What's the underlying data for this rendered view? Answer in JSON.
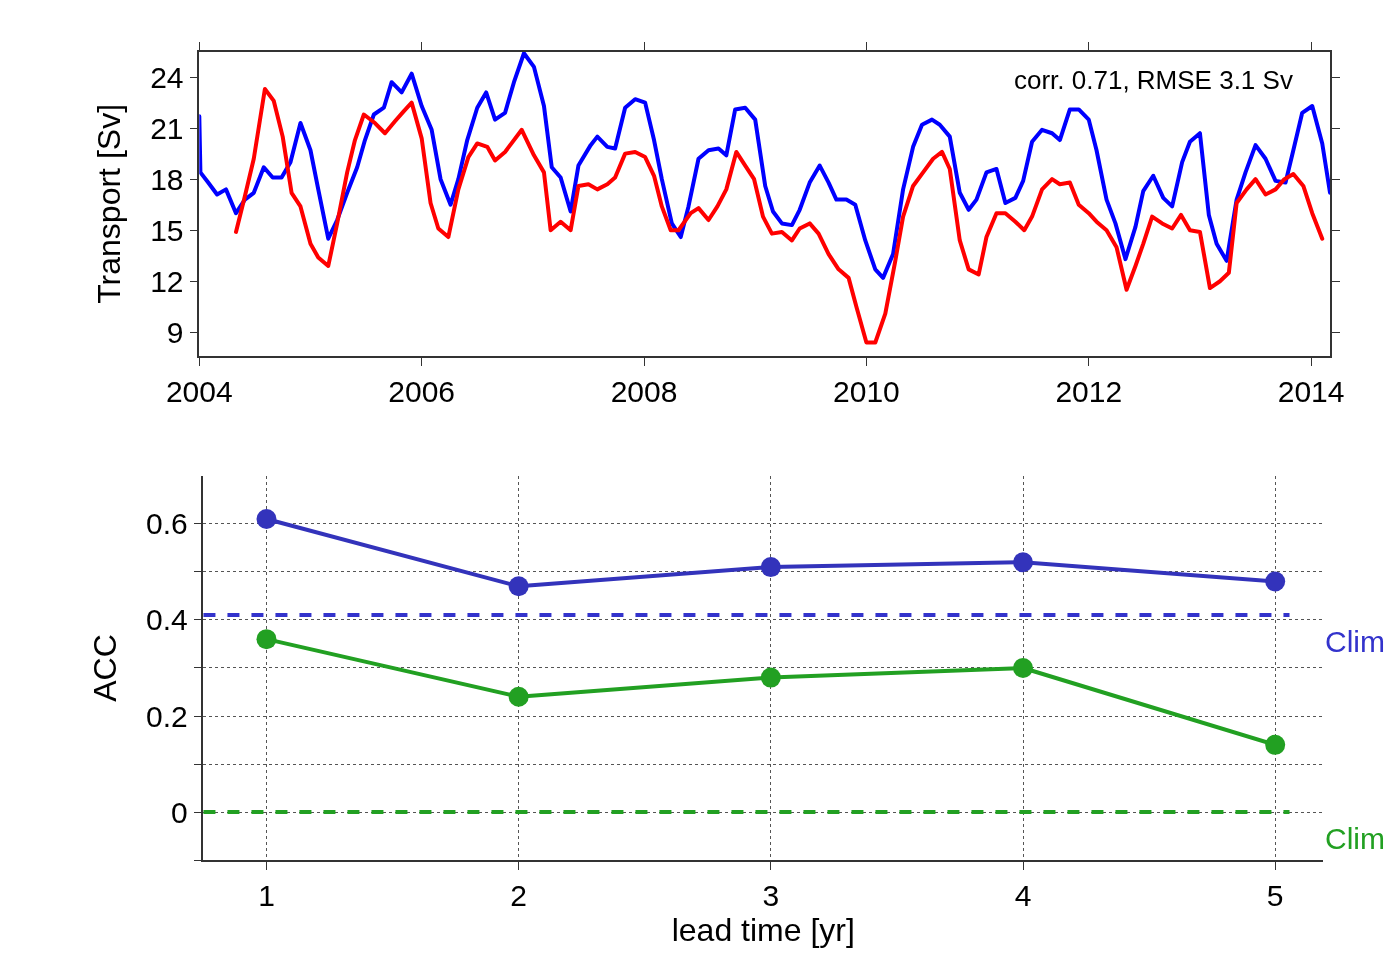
{
  "chart_data": [
    {
      "type": "line",
      "ylabel": "Transport [Sv]",
      "xlim": [
        2004,
        2014.17
      ],
      "xticks": [
        2004,
        2006,
        2008,
        2010,
        2012,
        2014
      ],
      "ylim": [
        7.6,
        25.5
      ],
      "yticks": [
        9,
        12,
        15,
        18,
        21,
        24
      ],
      "grid": false,
      "marker": "none",
      "line_style": "solid",
      "annotations": [
        "corr. 0.71, RMSE 3.1 Sv"
      ],
      "series": [
        {
          "color": "#0000ff",
          "x": [
            2004.0,
            2004.01,
            2004.08,
            2004.16,
            2004.24,
            2004.33,
            2004.41,
            2004.49,
            2004.58,
            2004.66,
            2004.74,
            2004.82,
            2004.91,
            2005.0,
            2005.07,
            2005.16,
            2005.24,
            2005.33,
            2005.42,
            2005.49,
            2005.57,
            2005.66,
            2005.73,
            2005.82,
            2005.91,
            2006.0,
            2006.09,
            2006.17,
            2006.26,
            2006.33,
            2006.41,
            2006.5,
            2006.58,
            2006.66,
            2006.75,
            2006.83,
            2006.92,
            2007.01,
            2007.1,
            2007.17,
            2007.25,
            2007.34,
            2007.41,
            2007.52,
            2007.58,
            2007.67,
            2007.74,
            2007.83,
            2007.92,
            2008.01,
            2008.09,
            2008.16,
            2008.25,
            2008.33,
            2008.4,
            2008.49,
            2008.58,
            2008.67,
            2008.74,
            2008.82,
            2008.91,
            2009.0,
            2009.09,
            2009.16,
            2009.24,
            2009.33,
            2009.4,
            2009.49,
            2009.58,
            2009.66,
            2009.73,
            2009.82,
            2009.9,
            2009.99,
            2010.08,
            2010.15,
            2010.24,
            2010.33,
            2010.42,
            2010.5,
            2010.59,
            2010.66,
            2010.75,
            2010.84,
            2010.92,
            2010.99,
            2011.08,
            2011.17,
            2011.25,
            2011.34,
            2011.41,
            2011.49,
            2011.58,
            2011.67,
            2011.74,
            2011.83,
            2011.91,
            2012.0,
            2012.07,
            2012.16,
            2012.24,
            2012.33,
            2012.42,
            2012.49,
            2012.58,
            2012.67,
            2012.75,
            2012.84,
            2012.91,
            2013.0,
            2013.08,
            2013.15,
            2013.24,
            2013.33,
            2013.41,
            2013.5,
            2013.59,
            2013.68,
            2013.77,
            2013.84,
            2013.92,
            2014.01,
            2014.1,
            2014.17
          ],
          "values": [
            21.7,
            18.4,
            17.8,
            17.1,
            17.4,
            16.0,
            16.8,
            17.2,
            18.7,
            18.1,
            18.1,
            19.0,
            21.3,
            19.7,
            17.4,
            14.5,
            15.6,
            17.2,
            18.7,
            20.3,
            21.8,
            22.2,
            23.7,
            23.1,
            24.2,
            22.3,
            20.9,
            18.0,
            16.5,
            18.0,
            20.3,
            22.2,
            23.1,
            21.5,
            21.9,
            23.7,
            25.4,
            24.6,
            22.3,
            18.7,
            18.1,
            16.1,
            18.8,
            20.0,
            20.5,
            19.9,
            19.8,
            22.2,
            22.7,
            22.5,
            20.3,
            18.0,
            15.4,
            14.6,
            16.4,
            19.2,
            19.7,
            19.8,
            19.4,
            22.1,
            22.2,
            21.5,
            17.6,
            16.1,
            15.4,
            15.3,
            16.2,
            17.8,
            18.8,
            17.8,
            16.8,
            16.8,
            16.5,
            14.4,
            12.7,
            12.2,
            13.6,
            17.4,
            19.9,
            21.2,
            21.5,
            21.2,
            20.5,
            17.2,
            16.2,
            16.8,
            18.4,
            18.6,
            16.6,
            16.9,
            17.9,
            20.2,
            20.9,
            20.7,
            20.3,
            22.1,
            22.1,
            21.5,
            19.7,
            16.8,
            15.4,
            13.3,
            15.2,
            17.3,
            18.2,
            16.9,
            16.4,
            19.0,
            20.2,
            20.7,
            15.9,
            14.2,
            13.2,
            16.8,
            18.4,
            20.0,
            19.2,
            17.9,
            17.8,
            19.7,
            21.9,
            22.3,
            20.1,
            17.2
          ]
        },
        {
          "color": "#ff0000",
          "x": [
            2004.33,
            2004.41,
            2004.49,
            2004.59,
            2004.67,
            2004.75,
            2004.83,
            2004.91,
            2005.0,
            2005.07,
            2005.16,
            2005.24,
            2005.33,
            2005.4,
            2005.48,
            2005.58,
            2005.67,
            2005.76,
            2005.84,
            2005.91,
            2006.0,
            2006.08,
            2006.15,
            2006.24,
            2006.33,
            2006.42,
            2006.5,
            2006.59,
            2006.66,
            2006.75,
            2006.9,
            2007.01,
            2007.1,
            2007.16,
            2007.25,
            2007.34,
            2007.41,
            2007.5,
            2007.58,
            2007.67,
            2007.74,
            2007.83,
            2007.92,
            2008.01,
            2008.09,
            2008.16,
            2008.24,
            2008.31,
            2008.42,
            2008.49,
            2008.58,
            2008.66,
            2008.74,
            2008.83,
            2008.91,
            2008.99,
            2009.07,
            2009.15,
            2009.24,
            2009.33,
            2009.4,
            2009.49,
            2009.57,
            2009.66,
            2009.75,
            2009.84,
            2009.91,
            2010.0,
            2010.08,
            2010.17,
            2010.26,
            2010.33,
            2010.42,
            2010.51,
            2010.6,
            2010.68,
            2010.75,
            2010.84,
            2010.92,
            2011.01,
            2011.08,
            2011.17,
            2011.25,
            2011.34,
            2011.42,
            2011.49,
            2011.58,
            2011.67,
            2011.74,
            2011.83,
            2011.91,
            2012.0,
            2012.07,
            2012.16,
            2012.25,
            2012.34,
            2012.42,
            2012.49,
            2012.57,
            2012.66,
            2012.75,
            2012.83,
            2012.91,
            2013.0,
            2013.09,
            2013.18,
            2013.26,
            2013.33,
            2013.42,
            2013.5,
            2013.59,
            2013.68,
            2013.76,
            2013.84,
            2013.93,
            2014.01,
            2014.1
          ],
          "values": [
            14.9,
            17.0,
            19.2,
            23.3,
            22.6,
            20.5,
            17.2,
            16.4,
            14.2,
            13.4,
            12.9,
            15.4,
            18.4,
            20.3,
            21.8,
            21.3,
            20.7,
            21.4,
            22.0,
            22.5,
            20.4,
            16.6,
            15.1,
            14.6,
            17.4,
            19.3,
            20.1,
            19.9,
            19.1,
            19.6,
            20.9,
            19.4,
            18.4,
            15.0,
            15.5,
            15.0,
            17.6,
            17.7,
            17.4,
            17.7,
            18.1,
            19.5,
            19.6,
            19.3,
            18.2,
            16.4,
            15.0,
            15.0,
            16.0,
            16.3,
            15.6,
            16.4,
            17.4,
            19.6,
            18.8,
            18.0,
            15.8,
            14.8,
            14.9,
            14.4,
            15.1,
            15.4,
            14.8,
            13.6,
            12.7,
            12.2,
            10.5,
            8.4,
            8.4,
            10.1,
            13.2,
            15.8,
            17.6,
            18.4,
            19.2,
            19.6,
            18.6,
            14.4,
            12.7,
            12.4,
            14.6,
            16.0,
            16.0,
            15.5,
            15.0,
            15.8,
            17.4,
            18.0,
            17.7,
            17.8,
            16.5,
            16.0,
            15.5,
            15.0,
            14.0,
            11.5,
            12.9,
            14.2,
            15.8,
            15.4,
            15.1,
            15.9,
            15.0,
            14.9,
            11.6,
            12.0,
            12.5,
            16.6,
            17.4,
            18.0,
            17.1,
            17.4,
            18.0,
            18.3,
            17.6,
            16.0,
            14.5
          ]
        }
      ]
    },
    {
      "type": "line",
      "xlabel": "lead time [yr]",
      "ylabel": "ACC",
      "x": [
        1,
        2,
        3,
        4,
        5
      ],
      "xlim": [
        0.75,
        5.19
      ],
      "xticks": [
        1,
        2,
        3,
        4,
        5
      ],
      "ylim": [
        -0.1,
        0.7
      ],
      "yticks": [
        {
          "value": -0.1,
          "label": null
        },
        0,
        {
          "value": 0.1,
          "label": null
        },
        0.2,
        {
          "value": 0.3,
          "label": null
        },
        0.4,
        {
          "value": 0.5,
          "label": null
        },
        0.6
      ],
      "grid": true,
      "marker": "circle",
      "line_style": "solid",
      "series": [
        {
          "color": "#3333bb",
          "values": [
            0.61,
            0.47,
            0.51,
            0.52,
            0.48
          ]
        },
        {
          "color": "#22a022",
          "values": [
            0.36,
            0.24,
            0.28,
            0.3,
            0.14
          ]
        }
      ],
      "ref_lines": [
        {
          "axis": "y",
          "value": 0.41,
          "label": "Clim",
          "color": "#3333cc",
          "line_style": "dashed"
        },
        {
          "axis": "y",
          "value": 0.0,
          "label": "Clim",
          "color": "#22a022",
          "line_style": "dashed"
        }
      ]
    }
  ]
}
